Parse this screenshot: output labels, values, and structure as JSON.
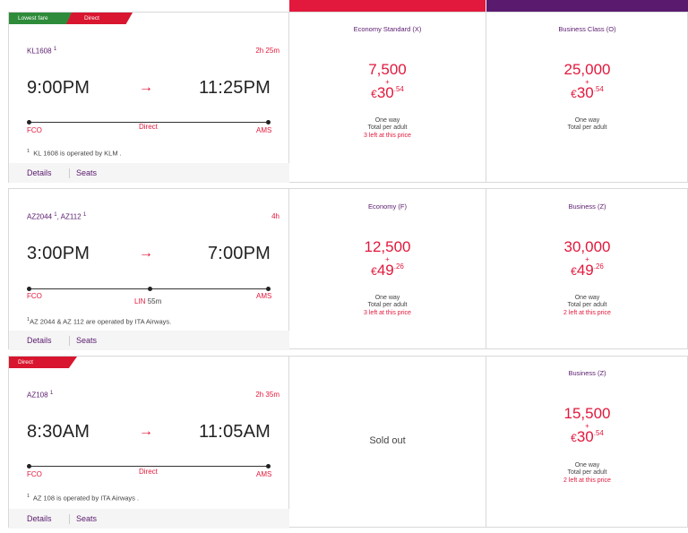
{
  "colors": {
    "accent_red": "#e2183c",
    "brand_purple": "#5a1a6e",
    "badge_green": "#2e8b3a"
  },
  "rows": [
    {
      "badges": [
        "Lowest fare",
        "Direct"
      ],
      "flight_no": "KL1608",
      "duration": "2h 25m",
      "dep_time": "9:00PM",
      "arr_time": "11:25PM",
      "arrow": "→",
      "stop_text": "Direct",
      "origin": "FCO",
      "destination": "AMS",
      "operated": "KL 1608 is operated by KLM .",
      "details": "Details",
      "seats": "Seats",
      "fares": [
        {
          "class": "Economy Standard (X)",
          "miles": "7,500",
          "plus": "+",
          "currency": "€",
          "euros": "30",
          "cents": ".54",
          "oneway": "One way",
          "per_adult": "Total per adult",
          "seats_left": "3 left at this price"
        },
        {
          "class": "Business Class (O)",
          "miles": "25,000",
          "plus": "+",
          "currency": "€",
          "euros": "30",
          "cents": ".54",
          "oneway": "One way",
          "per_adult": "Total per adult",
          "seats_left": ""
        }
      ]
    },
    {
      "flight_no": "AZ2044",
      "flight_no2": "AZ112",
      "duration": "4h",
      "dep_time": "3:00PM",
      "arr_time": "7:00PM",
      "arrow": "→",
      "origin": "FCO",
      "stop": "LIN",
      "stop_time": "55m",
      "destination": "AMS",
      "operated": "AZ 2044 & AZ 112 are operated by ITA Airways.",
      "details": "Details",
      "seats": "Seats",
      "fares": [
        {
          "class": "Economy (F)",
          "miles": "12,500",
          "plus": "+",
          "currency": "€",
          "euros": "49",
          "cents": ".26",
          "oneway": "One way",
          "per_adult": "Total per adult",
          "seats_left": "3 left at this price"
        },
        {
          "class": "Business (Z)",
          "miles": "30,000",
          "plus": "+",
          "currency": "€",
          "euros": "49",
          "cents": ".26",
          "oneway": "One way",
          "per_adult": "Total per adult",
          "seats_left": "2 left at this price"
        }
      ]
    },
    {
      "badges": [
        "Direct"
      ],
      "flight_no": "AZ108",
      "duration": "2h 35m",
      "dep_time": "8:30AM",
      "arr_time": "11:05AM",
      "arrow": "→",
      "stop_text": "Direct",
      "origin": "FCO",
      "destination": "AMS",
      "operated": "AZ 108 is operated by ITA Airways .",
      "details": "Details",
      "seats": "Seats",
      "sold_out": "Sold out",
      "fares": [
        {
          "class": "Business (Z)",
          "miles": "15,500",
          "plus": "+",
          "currency": "€",
          "euros": "30",
          "cents": ".54",
          "oneway": "One way",
          "per_adult": "Total per adult",
          "seats_left": "2 left at this price"
        }
      ]
    }
  ],
  "footnote_mark": "1"
}
